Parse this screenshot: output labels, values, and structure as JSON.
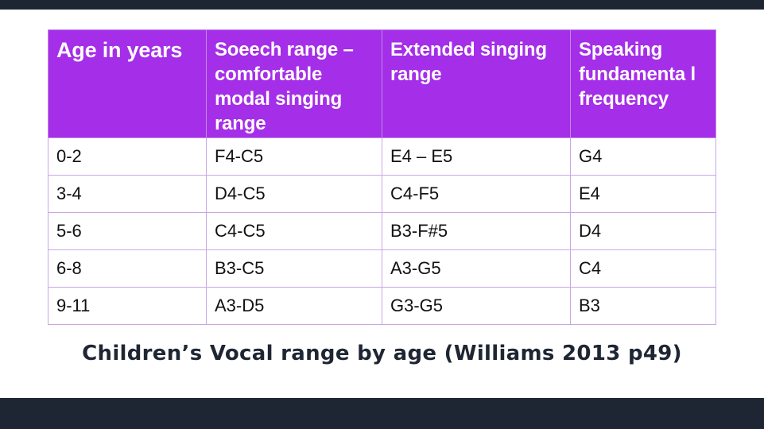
{
  "table": {
    "headers": [
      "Age in years",
      "Soeech range – comfortable modal singing range",
      "Extended singing range",
      "Speaking fundamenta l frequency"
    ],
    "rows": [
      [
        "0-2",
        "F4-C5",
        "E4 – E5",
        "G4"
      ],
      [
        "3-4",
        "D4-C5",
        "C4-F5",
        "E4"
      ],
      [
        "5-6",
        "C4-C5",
        "B3-F#5",
        "D4"
      ],
      [
        "6-8",
        "B3-C5",
        "A3-G5",
        "C4"
      ],
      [
        "9-11",
        "A3-D5",
        "G3-G5",
        "B3"
      ]
    ]
  },
  "caption": "Children’s Vocal range by age (Williams 2013 p49)",
  "colors": {
    "header_bg": "#a52ee8",
    "bar": "#1f2633",
    "caption_text": "#1f2633"
  }
}
